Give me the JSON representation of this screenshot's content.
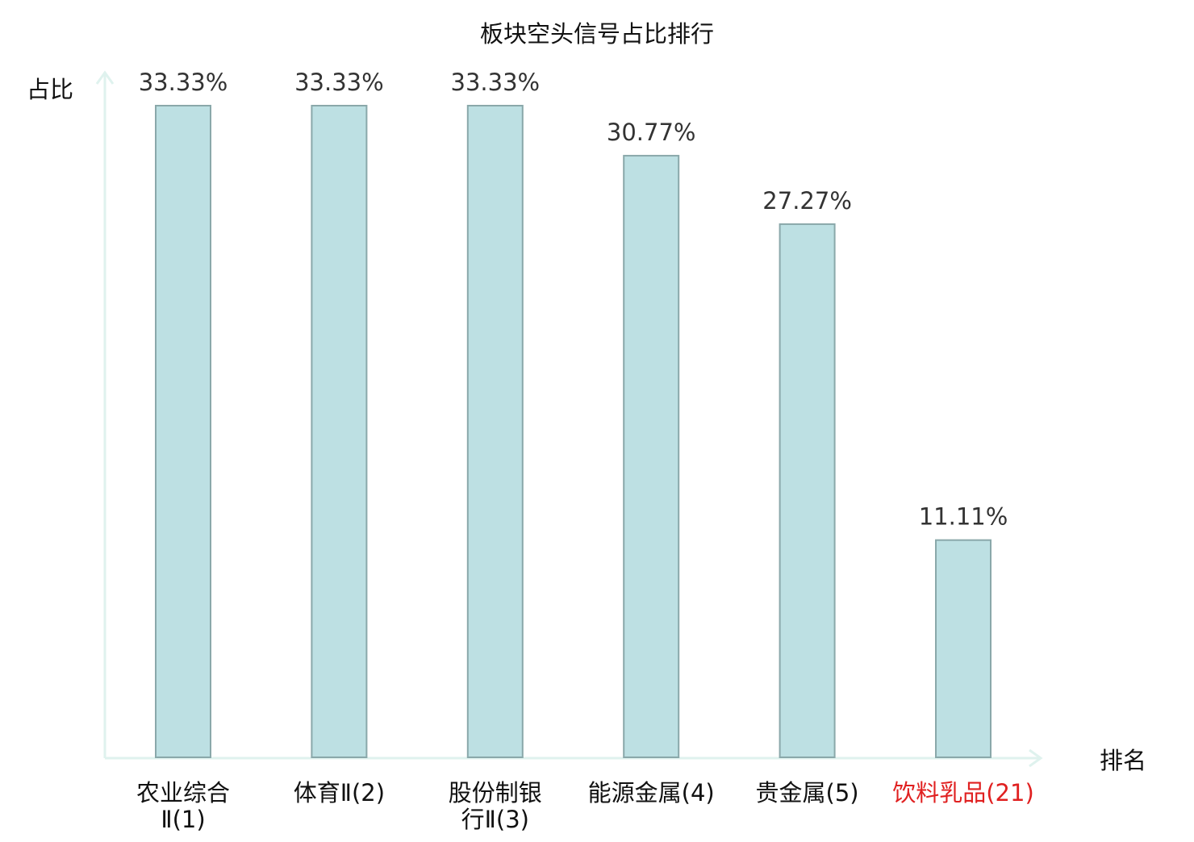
{
  "chart_data": {
    "type": "bar",
    "title": "板块空头信号占比排行",
    "ylabel": "占比",
    "xlabel": "排名",
    "ylim": [
      0,
      33.33
    ],
    "grid": false,
    "legend": "none",
    "categories": [
      {
        "label_lines": [
          "农业综合",
          "Ⅱ(1)"
        ],
        "highlight": false
      },
      {
        "label_lines": [
          "体育Ⅱ(2)"
        ],
        "highlight": false
      },
      {
        "label_lines": [
          "股份制银",
          "行Ⅱ(3)"
        ],
        "highlight": false
      },
      {
        "label_lines": [
          "能源金属(4)"
        ],
        "highlight": false
      },
      {
        "label_lines": [
          "贵金属(5)"
        ],
        "highlight": false
      },
      {
        "label_lines": [
          "饮料乳品(21)"
        ],
        "highlight": true
      }
    ],
    "values": [
      33.33,
      33.33,
      33.33,
      30.77,
      27.27,
      11.11
    ],
    "value_labels": [
      "33.33%",
      "33.33%",
      "33.33%",
      "30.77%",
      "27.27%",
      "11.11%"
    ],
    "colors": {
      "bar_fill": "#bde0e3",
      "bar_stroke": "#8aa8aa",
      "axis": "#dff2ee",
      "value_label": "#333333",
      "category_label": "#111111",
      "highlight_label": "#e02020",
      "title": "#111111"
    }
  }
}
